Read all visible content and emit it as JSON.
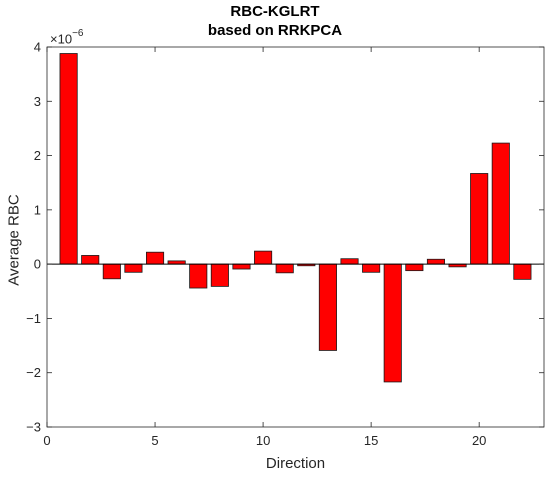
{
  "chart_data": {
    "type": "bar",
    "title": [
      "RBC-KGLRT",
      "based on RRKPCA"
    ],
    "xlabel": "Direction",
    "ylabel": "Average RBC",
    "y_exponent": {
      "base": "×10",
      "power": "−6"
    },
    "x": [
      1,
      2,
      3,
      4,
      5,
      6,
      7,
      8,
      9,
      10,
      11,
      12,
      13,
      14,
      15,
      16,
      17,
      18,
      19,
      20,
      21,
      22
    ],
    "values": [
      3.88,
      0.16,
      -0.27,
      -0.15,
      0.22,
      0.06,
      -0.44,
      -0.41,
      -0.09,
      0.24,
      -0.16,
      -0.03,
      -1.59,
      0.1,
      -0.15,
      -2.17,
      -0.12,
      0.09,
      -0.05,
      1.67,
      2.23,
      -0.28
    ],
    "xlim": [
      0,
      23
    ],
    "ylim": [
      -3,
      4
    ],
    "xticks": [
      0,
      5,
      10,
      15,
      20
    ],
    "yticks": [
      -3,
      -2,
      -1,
      0,
      1,
      2,
      3,
      4
    ],
    "grid": false,
    "colors": {
      "bar_fill": "#ff0000",
      "bar_edge": "#1a1a1a",
      "axis": "#262626",
      "baseline": "#000000"
    }
  }
}
